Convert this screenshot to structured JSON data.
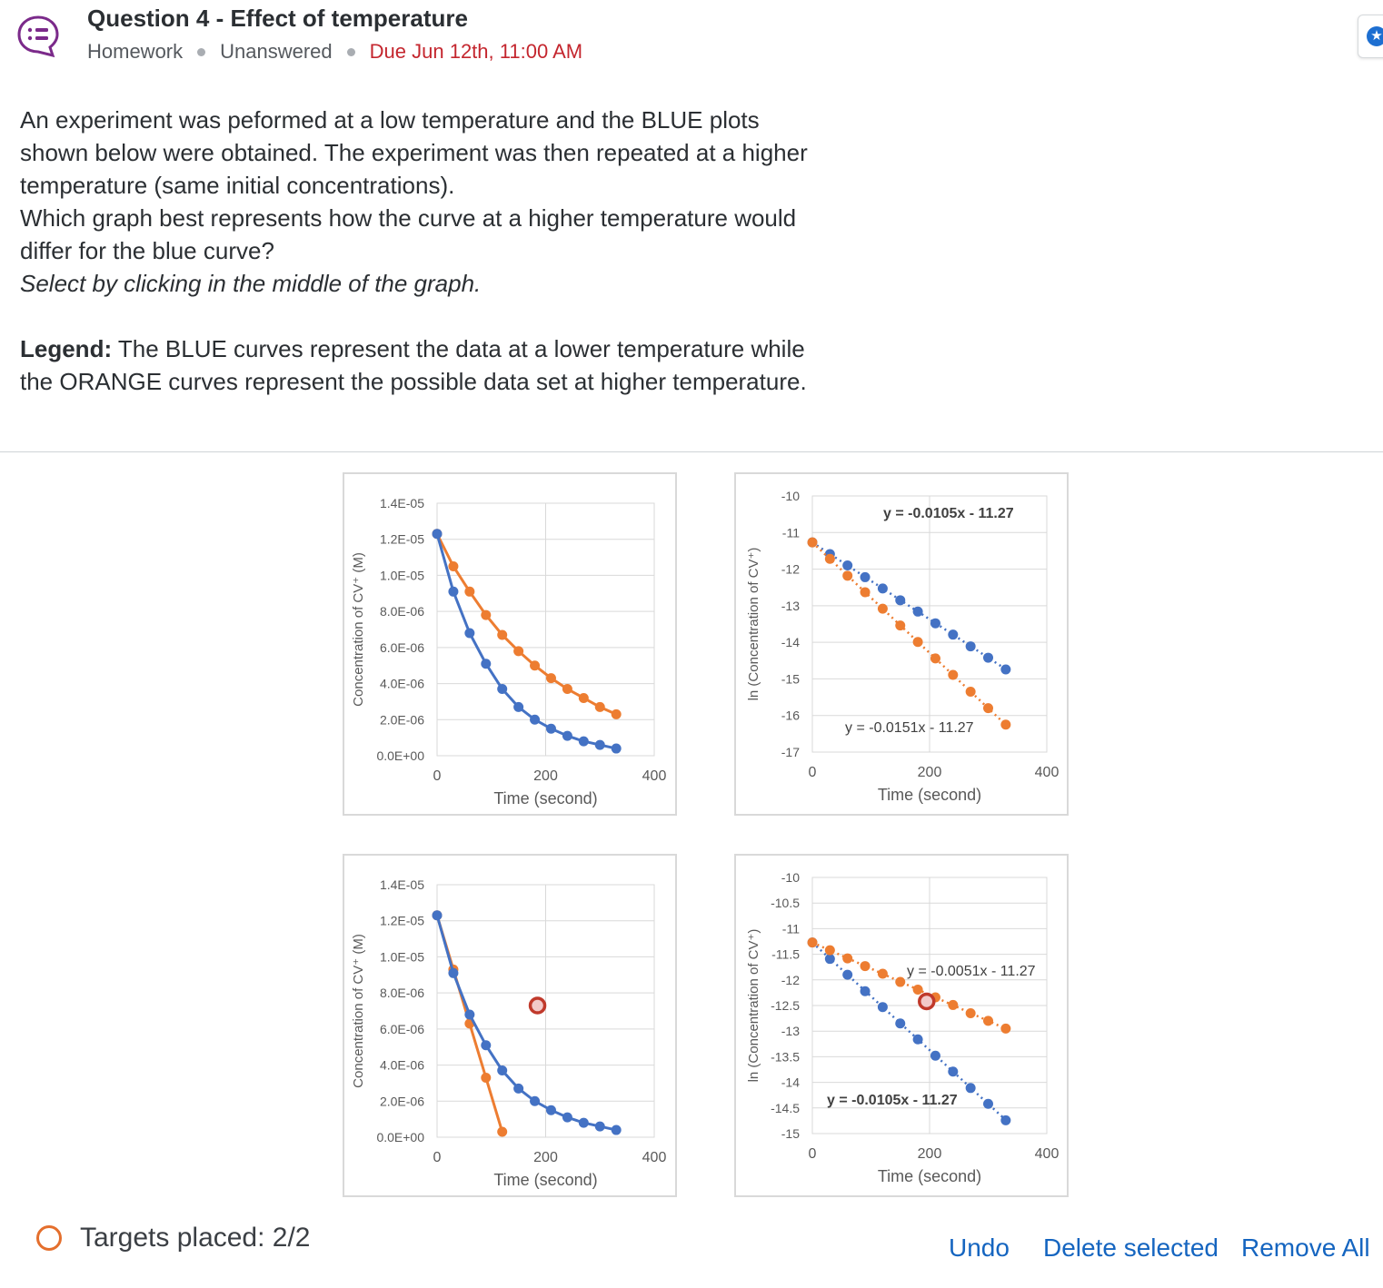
{
  "header": {
    "title": "Question 4 - Effect of temperature",
    "type": "Homework",
    "status": "Unanswered",
    "due": "Due Jun 12th, 11:00 AM"
  },
  "prompt": {
    "line1": "An experiment was peformed at a low temperature and the BLUE plots",
    "line2": "shown below were obtained. The experiment was then repeated at a higher",
    "line3": "temperature (same initial concentrations).",
    "line4": "Which graph best represents how the curve at a higher temperature would",
    "line5": "differ for the blue curve?",
    "hint": "Select by clicking in the middle of the graph.",
    "legend_label": "Legend:",
    "legend_line1": " The BLUE curves represent the data at a lower temperature while",
    "legend_line2": "the ORANGE curves represent the possible data set at higher temperature."
  },
  "footer": {
    "targets_placed": "Targets placed: 2/2",
    "undo": "Undo",
    "delete_selected": "Delete selected",
    "remove_all": "Remove All"
  },
  "colors": {
    "blue": "#4472c4",
    "orange": "#ed7d31",
    "marker": "#c0392b",
    "link": "#1565c0",
    "due": "#c4262e"
  },
  "icons": {
    "question": "list-chat-icon",
    "corner": "star-badge-icon"
  },
  "chart_data": [
    {
      "type": "line",
      "xlabel": "Time (second)",
      "ylabel": "Concentration of CV⁺ (M)",
      "xlim": [
        0,
        400
      ],
      "ylim": [
        0,
        1.4e-05
      ],
      "xticks": [
        "0",
        "200",
        "400"
      ],
      "yticks": [
        "0.0E+00",
        "2.0E-06",
        "4.0E-06",
        "6.0E-06",
        "8.0E-06",
        "1.0E-05",
        "1.2E-05",
        "1.4E-05"
      ],
      "series": [
        {
          "color": "blue",
          "x": [
            0,
            30,
            60,
            90,
            120,
            150,
            180,
            210,
            240,
            270,
            300,
            330
          ],
          "y": [
            1.23e-05,
            9.1e-06,
            6.8e-06,
            5.1e-06,
            3.7e-06,
            2.7e-06,
            2e-06,
            1.5e-06,
            1.1e-06,
            8e-07,
            6e-07,
            4e-07
          ]
        },
        {
          "color": "orange",
          "x": [
            0,
            30,
            60,
            90,
            120,
            150,
            180,
            210,
            240,
            270,
            300,
            330
          ],
          "y": [
            1.23e-05,
            1.05e-05,
            9.1e-06,
            7.8e-06,
            6.7e-06,
            5.8e-06,
            5e-06,
            4.3e-06,
            3.7e-06,
            3.2e-06,
            2.7e-06,
            2.3e-06
          ]
        }
      ]
    },
    {
      "type": "scatter",
      "xlabel": "Time (second)",
      "ylabel": "ln (Concentration of CV⁺)",
      "xlim": [
        0,
        400
      ],
      "ylim": [
        -17,
        -10
      ],
      "xticks": [
        "0",
        "200",
        "400"
      ],
      "yticks": [
        "-10",
        "-11",
        "-12",
        "-13",
        "-14",
        "-15",
        "-16",
        "-17"
      ],
      "series": [
        {
          "color": "blue",
          "trend": "y = -0.0105x - 11.27",
          "slope": -0.0105,
          "intercept": -11.27,
          "x": [
            0,
            30,
            60,
            90,
            120,
            150,
            180,
            210,
            240,
            270,
            300,
            330
          ],
          "y": [
            -11.27,
            -11.59,
            -11.9,
            -12.22,
            -12.53,
            -12.85,
            -13.16,
            -13.48,
            -13.79,
            -14.11,
            -14.42,
            -14.74
          ]
        },
        {
          "color": "orange",
          "trend": "y = -0.0151x - 11.27",
          "slope": -0.0151,
          "intercept": -11.27,
          "x": [
            0,
            30,
            60,
            90,
            120,
            150,
            180,
            210,
            240,
            270,
            300,
            330
          ],
          "y": [
            -11.27,
            -11.72,
            -12.18,
            -12.63,
            -13.08,
            -13.54,
            -13.99,
            -14.44,
            -14.89,
            -15.35,
            -15.8,
            -16.25
          ]
        }
      ]
    },
    {
      "type": "line",
      "xlabel": "Time (second)",
      "ylabel": "Concentration of CV⁺ (M)",
      "xlim": [
        0,
        400
      ],
      "ylim": [
        0,
        1.4e-05
      ],
      "xticks": [
        "0",
        "200",
        "400"
      ],
      "yticks": [
        "0.0E+00",
        "2.0E-06",
        "4.0E-06",
        "6.0E-06",
        "8.0E-06",
        "1.0E-05",
        "1.2E-05",
        "1.4E-05"
      ],
      "marker": {
        "x": 185,
        "y": 7.3e-06
      },
      "series": [
        {
          "color": "blue",
          "x": [
            0,
            30,
            60,
            90,
            120,
            150,
            180,
            210,
            240,
            270,
            300,
            330
          ],
          "y": [
            1.23e-05,
            9.1e-06,
            6.8e-06,
            5.1e-06,
            3.7e-06,
            2.7e-06,
            2e-06,
            1.5e-06,
            1.1e-06,
            8e-07,
            6e-07,
            4e-07
          ]
        },
        {
          "color": "orange",
          "x": [
            0,
            30,
            60,
            90,
            120
          ],
          "y": [
            1.23e-05,
            9.3e-06,
            6.3e-06,
            3.3e-06,
            3e-07
          ]
        }
      ]
    },
    {
      "type": "scatter",
      "xlabel": "Time (second)",
      "ylabel": "ln (Concentration of CV⁺)",
      "xlim": [
        0,
        400
      ],
      "ylim": [
        -15,
        -10
      ],
      "xticks": [
        "0",
        "200",
        "400"
      ],
      "yticks": [
        "-10",
        "-10.5",
        "-11",
        "-11.5",
        "-12",
        "-12.5",
        "-13",
        "-13.5",
        "-14",
        "-14.5",
        "-15"
      ],
      "marker": {
        "x": 195,
        "y": -12.42
      },
      "series": [
        {
          "color": "blue",
          "trend": "y = -0.0105x - 11.27",
          "slope": -0.0105,
          "intercept": -11.27,
          "x": [
            0,
            30,
            60,
            90,
            120,
            150,
            180,
            210,
            240,
            270,
            300,
            330
          ],
          "y": [
            -11.27,
            -11.59,
            -11.9,
            -12.22,
            -12.53,
            -12.85,
            -13.16,
            -13.48,
            -13.79,
            -14.11,
            -14.42,
            -14.74
          ]
        },
        {
          "color": "orange",
          "trend": "y = -0.0051x - 11.27",
          "slope": -0.0051,
          "intercept": -11.27,
          "x": [
            0,
            30,
            60,
            90,
            120,
            150,
            180,
            210,
            240,
            270,
            300,
            330
          ],
          "y": [
            -11.27,
            -11.42,
            -11.58,
            -11.73,
            -11.88,
            -12.04,
            -12.19,
            -12.34,
            -12.49,
            -12.65,
            -12.8,
            -12.95
          ]
        }
      ]
    }
  ]
}
